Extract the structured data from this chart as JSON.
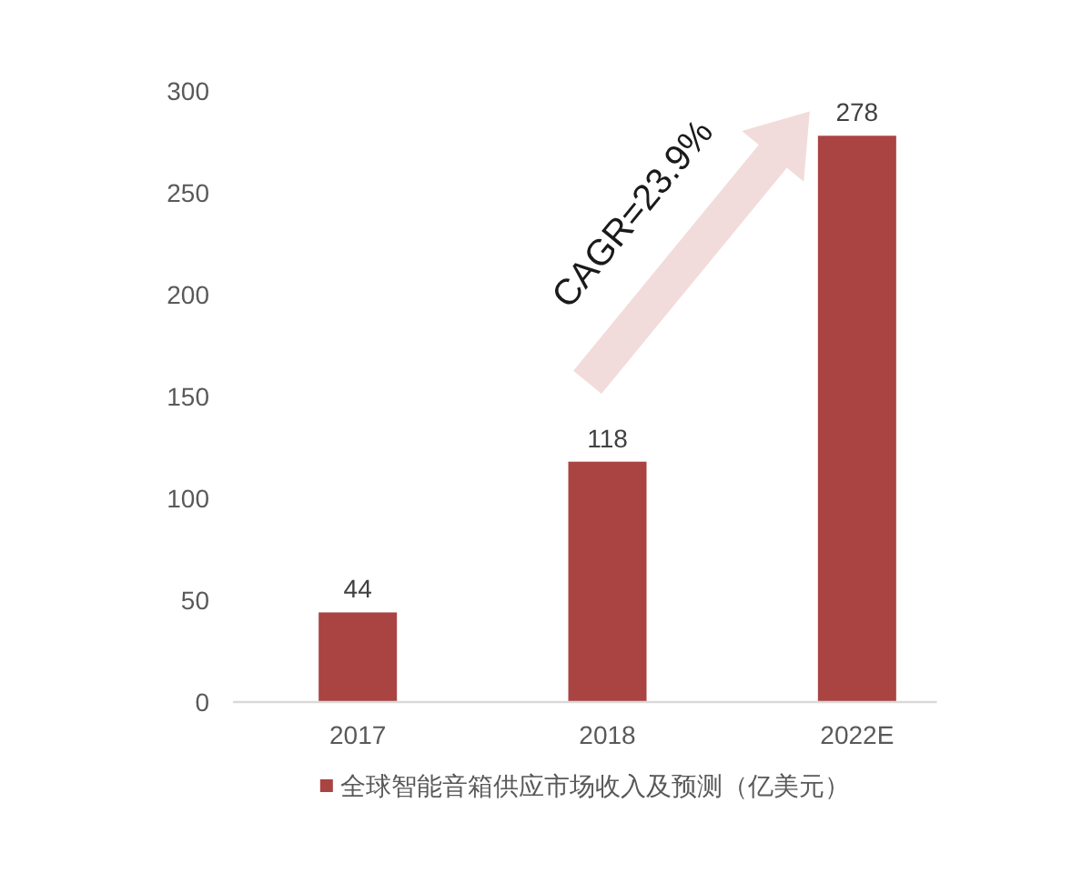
{
  "chart_data": {
    "type": "bar",
    "categories": [
      "2017",
      "2018",
      "2022E"
    ],
    "series": [
      {
        "name": "全球智能音箱供应市场收入及预测（亿美元）",
        "color": "#a94442",
        "values": [
          44,
          118,
          278
        ]
      }
    ],
    "ylim": [
      0,
      300
    ],
    "yticks": [
      0,
      50,
      100,
      150,
      200,
      250,
      300
    ],
    "data_labels": true,
    "legend": "bottom",
    "grid": false,
    "annotations": [
      "CAGR=23.9%"
    ]
  }
}
